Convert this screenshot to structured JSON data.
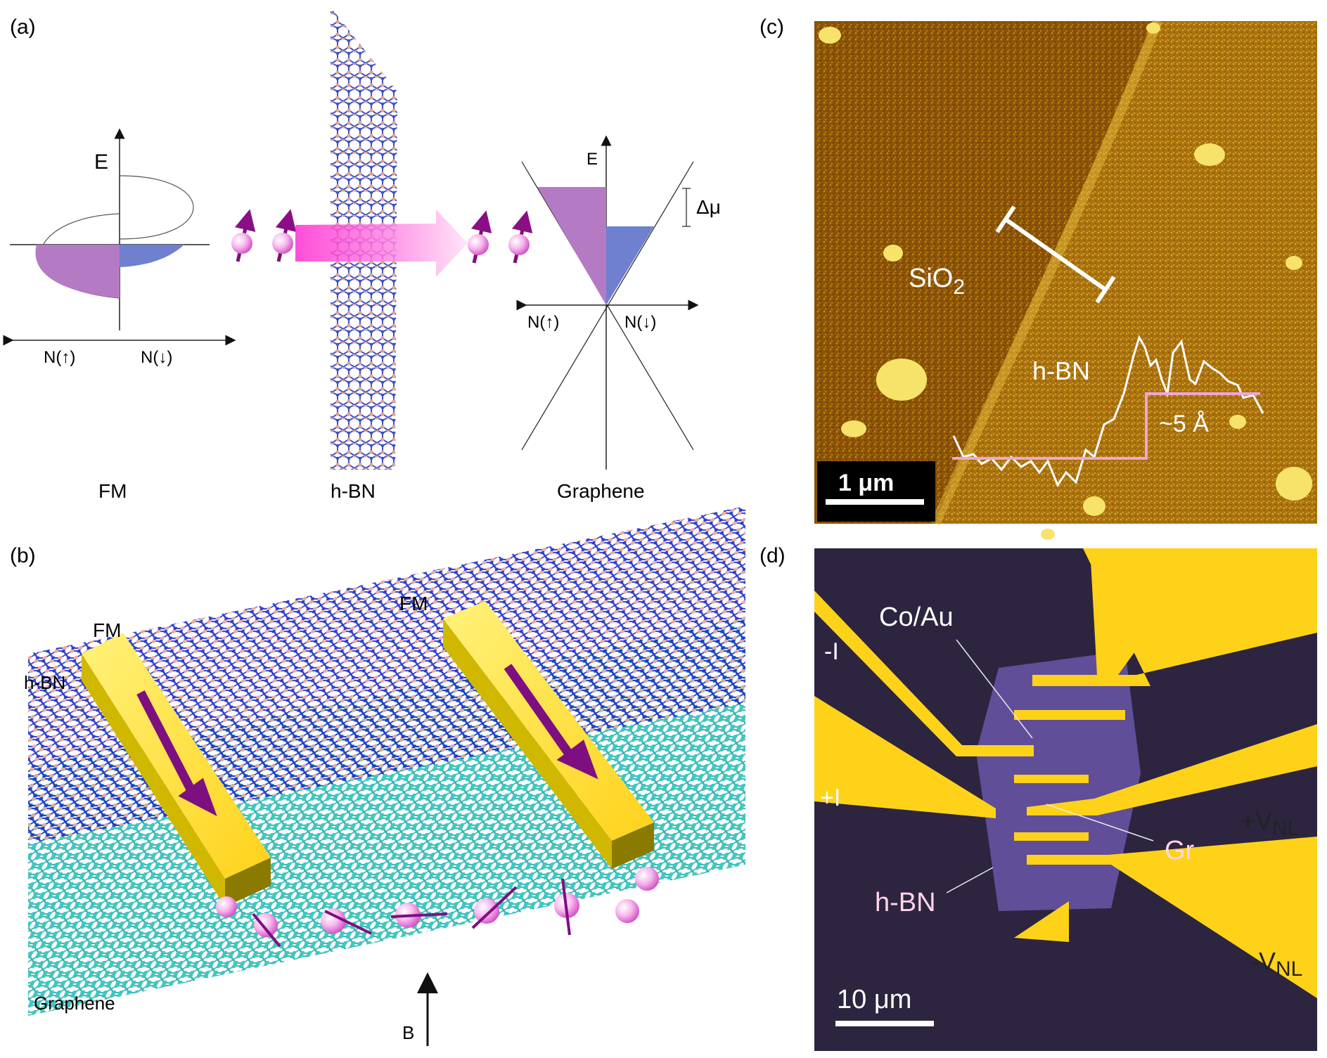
{
  "panel_a": {
    "label": "(a)",
    "fm_energy_axis": "E",
    "fm_dos_up": "N(↑)",
    "fm_dos_down": "N(↓)",
    "fm_caption": "FM",
    "hbn_caption": "h-BN",
    "graphene_energy_axis": "E",
    "graphene_dos_up": "N(↑)",
    "graphene_dos_down": "N(↓)",
    "delta_mu": "Δμ",
    "graphene_caption": "Graphene"
  },
  "panel_b": {
    "label": "(b)",
    "fm_left": "FM",
    "fm_right": "FM",
    "hbn": "h-BN",
    "graphene": "Graphene",
    "field": "B"
  },
  "panel_c": {
    "label": "(c)",
    "sio2": "SiO",
    "sio2_sub": "2",
    "hbn": "h-BN",
    "step": "~5 Å",
    "scale": "1 μm"
  },
  "panel_d": {
    "label": "(d)",
    "coau": "Co/Au",
    "minus_i": "-I",
    "plus_i": "+I",
    "plus_v": "+V",
    "minus_v": "-V",
    "v_sub": "NL",
    "gr": "Gr",
    "hbn": "h-BN",
    "scale": "10 μm"
  },
  "colors": {
    "purple": "#b070c0",
    "blue": "#7080d0",
    "magenta": "#ff3ccf",
    "gold": "#ffd000",
    "afm_brown": "#8a5208",
    "optical_dark": "#2a1f3e"
  }
}
